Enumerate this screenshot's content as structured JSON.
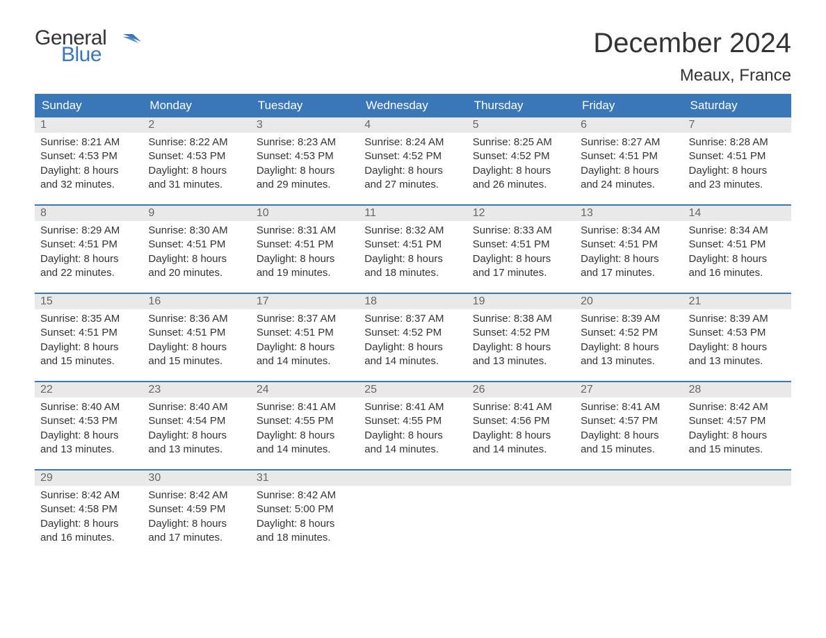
{
  "logo": {
    "line1": "General",
    "line2": "Blue"
  },
  "title": "December 2024",
  "location": "Meaux, France",
  "colors": {
    "header_bg": "#3a77b7",
    "header_text": "#ffffff",
    "daynum_bg": "#e9e9e9",
    "daynum_text": "#666666",
    "body_text": "#333333",
    "week_border": "#3a77b7",
    "logo_blue": "#3a77b7",
    "page_bg": "#ffffff"
  },
  "weekdays": [
    "Sunday",
    "Monday",
    "Tuesday",
    "Wednesday",
    "Thursday",
    "Friday",
    "Saturday"
  ],
  "weeks": [
    [
      {
        "num": "1",
        "sunrise": "8:21 AM",
        "sunset": "4:53 PM",
        "daylight": "8 hours and 32 minutes."
      },
      {
        "num": "2",
        "sunrise": "8:22 AM",
        "sunset": "4:53 PM",
        "daylight": "8 hours and 31 minutes."
      },
      {
        "num": "3",
        "sunrise": "8:23 AM",
        "sunset": "4:53 PM",
        "daylight": "8 hours and 29 minutes."
      },
      {
        "num": "4",
        "sunrise": "8:24 AM",
        "sunset": "4:52 PM",
        "daylight": "8 hours and 27 minutes."
      },
      {
        "num": "5",
        "sunrise": "8:25 AM",
        "sunset": "4:52 PM",
        "daylight": "8 hours and 26 minutes."
      },
      {
        "num": "6",
        "sunrise": "8:27 AM",
        "sunset": "4:51 PM",
        "daylight": "8 hours and 24 minutes."
      },
      {
        "num": "7",
        "sunrise": "8:28 AM",
        "sunset": "4:51 PM",
        "daylight": "8 hours and 23 minutes."
      }
    ],
    [
      {
        "num": "8",
        "sunrise": "8:29 AM",
        "sunset": "4:51 PM",
        "daylight": "8 hours and 22 minutes."
      },
      {
        "num": "9",
        "sunrise": "8:30 AM",
        "sunset": "4:51 PM",
        "daylight": "8 hours and 20 minutes."
      },
      {
        "num": "10",
        "sunrise": "8:31 AM",
        "sunset": "4:51 PM",
        "daylight": "8 hours and 19 minutes."
      },
      {
        "num": "11",
        "sunrise": "8:32 AM",
        "sunset": "4:51 PM",
        "daylight": "8 hours and 18 minutes."
      },
      {
        "num": "12",
        "sunrise": "8:33 AM",
        "sunset": "4:51 PM",
        "daylight": "8 hours and 17 minutes."
      },
      {
        "num": "13",
        "sunrise": "8:34 AM",
        "sunset": "4:51 PM",
        "daylight": "8 hours and 17 minutes."
      },
      {
        "num": "14",
        "sunrise": "8:34 AM",
        "sunset": "4:51 PM",
        "daylight": "8 hours and 16 minutes."
      }
    ],
    [
      {
        "num": "15",
        "sunrise": "8:35 AM",
        "sunset": "4:51 PM",
        "daylight": "8 hours and 15 minutes."
      },
      {
        "num": "16",
        "sunrise": "8:36 AM",
        "sunset": "4:51 PM",
        "daylight": "8 hours and 15 minutes."
      },
      {
        "num": "17",
        "sunrise": "8:37 AM",
        "sunset": "4:51 PM",
        "daylight": "8 hours and 14 minutes."
      },
      {
        "num": "18",
        "sunrise": "8:37 AM",
        "sunset": "4:52 PM",
        "daylight": "8 hours and 14 minutes."
      },
      {
        "num": "19",
        "sunrise": "8:38 AM",
        "sunset": "4:52 PM",
        "daylight": "8 hours and 13 minutes."
      },
      {
        "num": "20",
        "sunrise": "8:39 AM",
        "sunset": "4:52 PM",
        "daylight": "8 hours and 13 minutes."
      },
      {
        "num": "21",
        "sunrise": "8:39 AM",
        "sunset": "4:53 PM",
        "daylight": "8 hours and 13 minutes."
      }
    ],
    [
      {
        "num": "22",
        "sunrise": "8:40 AM",
        "sunset": "4:53 PM",
        "daylight": "8 hours and 13 minutes."
      },
      {
        "num": "23",
        "sunrise": "8:40 AM",
        "sunset": "4:54 PM",
        "daylight": "8 hours and 13 minutes."
      },
      {
        "num": "24",
        "sunrise": "8:41 AM",
        "sunset": "4:55 PM",
        "daylight": "8 hours and 14 minutes."
      },
      {
        "num": "25",
        "sunrise": "8:41 AM",
        "sunset": "4:55 PM",
        "daylight": "8 hours and 14 minutes."
      },
      {
        "num": "26",
        "sunrise": "8:41 AM",
        "sunset": "4:56 PM",
        "daylight": "8 hours and 14 minutes."
      },
      {
        "num": "27",
        "sunrise": "8:41 AM",
        "sunset": "4:57 PM",
        "daylight": "8 hours and 15 minutes."
      },
      {
        "num": "28",
        "sunrise": "8:42 AM",
        "sunset": "4:57 PM",
        "daylight": "8 hours and 15 minutes."
      }
    ],
    [
      {
        "num": "29",
        "sunrise": "8:42 AM",
        "sunset": "4:58 PM",
        "daylight": "8 hours and 16 minutes."
      },
      {
        "num": "30",
        "sunrise": "8:42 AM",
        "sunset": "4:59 PM",
        "daylight": "8 hours and 17 minutes."
      },
      {
        "num": "31",
        "sunrise": "8:42 AM",
        "sunset": "5:00 PM",
        "daylight": "8 hours and 18 minutes."
      },
      null,
      null,
      null,
      null
    ]
  ],
  "labels": {
    "sunrise": "Sunrise:",
    "sunset": "Sunset:",
    "daylight": "Daylight:"
  }
}
